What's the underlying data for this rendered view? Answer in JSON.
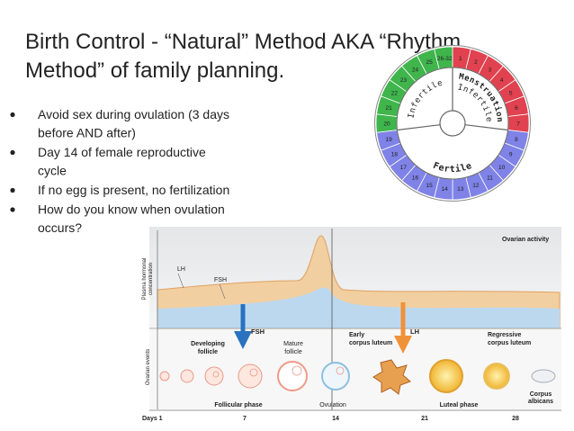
{
  "title": [
    "Birth Control - “Natural” Method AKA “Rhythm",
    "Method” of family planning."
  ],
  "bullets": [
    [
      "Avoid sex during ovulation (3 days",
      "before AND after)"
    ],
    [
      "Day 14 of female reproductive",
      "cycle"
    ],
    [
      "If no egg is present, no fertilization"
    ],
    [
      "How do you know when ovulation",
      "occurs?"
    ]
  ],
  "cycle_wheel": {
    "phases": [
      {
        "color": "#e0424f",
        "days": [
          "1",
          "2",
          "3",
          "4",
          "5",
          "6",
          "7"
        ]
      },
      {
        "color": "#7f82e6",
        "days": [
          "8",
          "9",
          "10",
          "11",
          "12",
          "13",
          "14",
          "15",
          "16",
          "17",
          "18",
          "19"
        ]
      },
      {
        "color": "#3fb54c",
        "days": [
          "20",
          "21",
          "22",
          "23",
          "24",
          "25",
          "26-32"
        ]
      }
    ],
    "labels": {
      "menstruation": "Menstruation",
      "infertile_after": "Infertile",
      "infertile_before": "Infertile",
      "fertile": "Fertile"
    }
  },
  "hormone_chart": {
    "ovarian_activity": "Ovarian activity",
    "plasma_axis": [
      "Plasma hormonal",
      "concentration"
    ],
    "events_axis": "Ovarian events",
    "lh_curve": "LH",
    "fsh_curve": "FSH",
    "fsh_arrow": "FSH",
    "lh_arrow": "LH",
    "developing_follicle": [
      "Developing",
      "follicle"
    ],
    "mature_follicle": [
      "Mature",
      "follicle"
    ],
    "early_corpus_luteum": [
      "Early",
      "corpus luteum"
    ],
    "regressive_corpus_luteum": [
      "Regressive",
      "corpus luteum"
    ],
    "corpus_albicans": [
      "Corpus",
      "albicans"
    ],
    "follicular_phase": "Follicular phase",
    "ovulation": "Ovulation",
    "luteal_phase": "Luteal phase",
    "days": [
      "Days 1",
      "7",
      "14",
      "21",
      "28"
    ]
  }
}
